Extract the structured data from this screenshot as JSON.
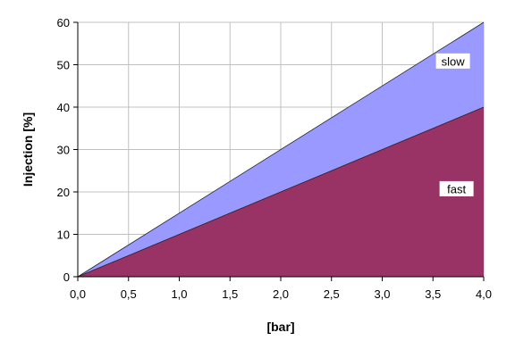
{
  "chart_data": {
    "type": "area",
    "x": [
      0.0,
      4.0
    ],
    "x_tick_labels": [
      "0,0",
      "0,5",
      "1,0",
      "1,5",
      "2,0",
      "2,5",
      "3,0",
      "3,5",
      "4,0"
    ],
    "x_ticks": [
      0,
      0.5,
      1.0,
      1.5,
      2.0,
      2.5,
      3.0,
      3.5,
      4.0
    ],
    "y_ticks": [
      0,
      10,
      20,
      30,
      40,
      50,
      60
    ],
    "y_tick_labels": [
      "0",
      "10",
      "20",
      "30",
      "40",
      "50",
      "60"
    ],
    "xlim": [
      0,
      4.0
    ],
    "ylim": [
      0,
      60
    ],
    "xlabel": "[bar]",
    "ylabel": "Injection [%]",
    "grid": true,
    "series": [
      {
        "name": "fast",
        "values": [
          0,
          40
        ],
        "color": "#993366"
      },
      {
        "name": "slow",
        "values": [
          0,
          60
        ],
        "color": "#9999ff"
      }
    ]
  }
}
